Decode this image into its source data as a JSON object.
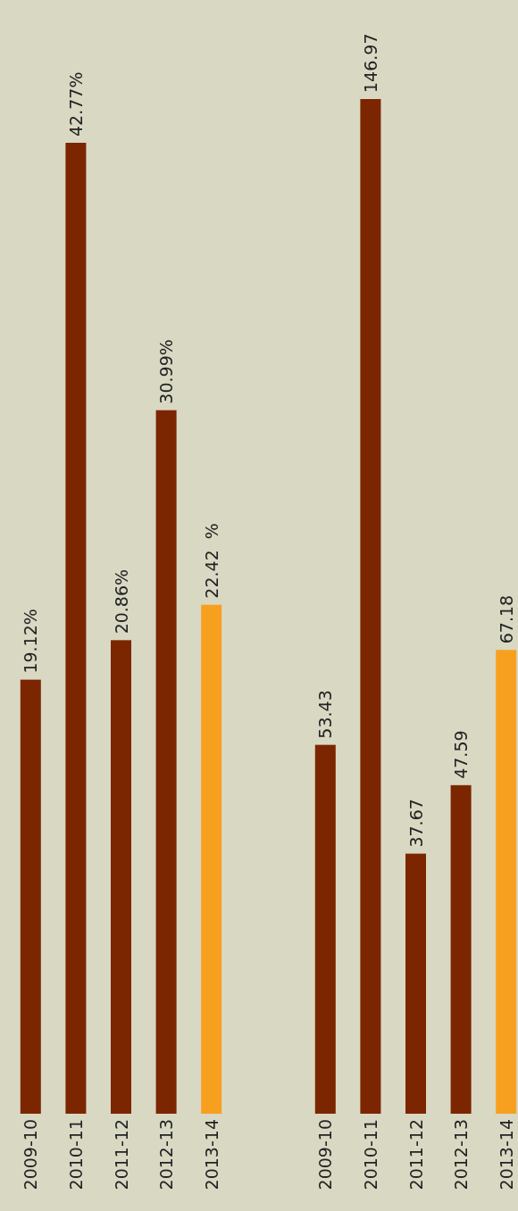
{
  "chart_data": [
    {
      "type": "bar",
      "categories": [
        "2009-10",
        "2010-11",
        "2011-12",
        "2012-13",
        "2013-14"
      ],
      "values": [
        19.12,
        42.77,
        20.86,
        30.99,
        22.42
      ],
      "colors": [
        "#7b2600",
        "#7b2600",
        "#7b2600",
        "#7b2600",
        "#f7a020"
      ],
      "value_labels": [
        "19.12%",
        "42.77%",
        "20.86%",
        "30.99%",
        "22.42  %"
      ]
    },
    {
      "type": "bar",
      "categories": [
        "2009-10",
        "2010-11",
        "2011-12",
        "2012-13",
        "2013-14"
      ],
      "values": [
        53.43,
        146.97,
        37.67,
        47.59,
        67.18
      ],
      "colors": [
        "#7b2600",
        "#7b2600",
        "#7b2600",
        "#7b2600",
        "#f7a020"
      ],
      "data_labels": true
    }
  ]
}
